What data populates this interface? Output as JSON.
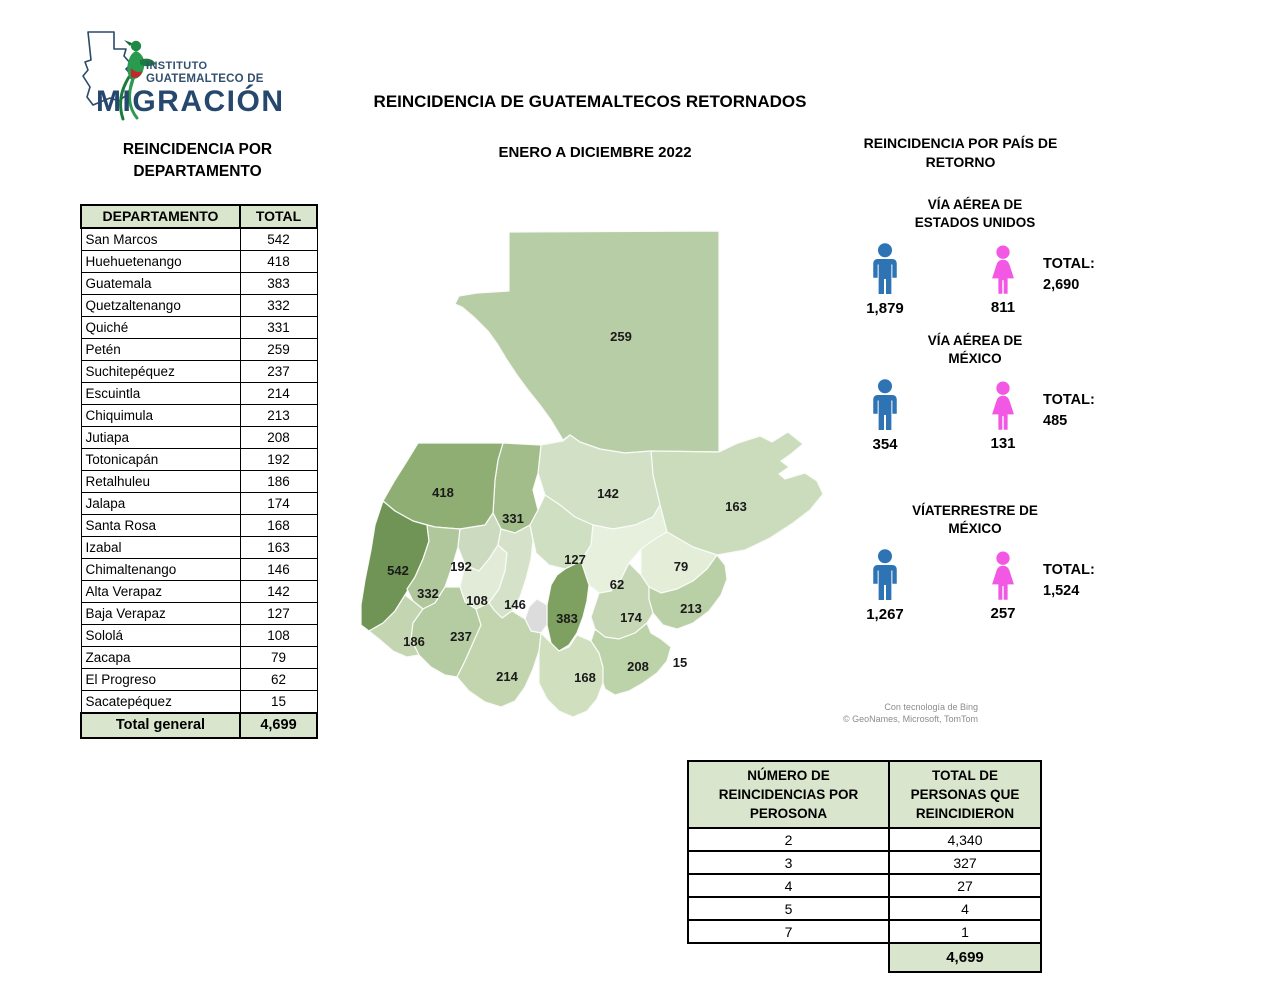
{
  "logo": {
    "line1": "INSTITUTO",
    "line2": "GUATEMALTECO DE",
    "line3": "MIGRACIÓN"
  },
  "header": {
    "title": "REINCIDENCIA DE GUATEMALTECOS RETORNADOS",
    "subtitle": "ENERO A DICIEMBRE 2022"
  },
  "left_panel": {
    "title": "REINCIDENCIA POR\nDEPARTAMENTO"
  },
  "department_table": {
    "headers": [
      "DEPARTAMENTO",
      "TOTAL"
    ],
    "rows": [
      [
        "San Marcos",
        "542"
      ],
      [
        "Huehuetenango",
        "418"
      ],
      [
        "Guatemala",
        "383"
      ],
      [
        "Quetzaltenango",
        "332"
      ],
      [
        "Quiché",
        "331"
      ],
      [
        "Petén",
        "259"
      ],
      [
        "Suchitepéquez",
        "237"
      ],
      [
        "Escuintla",
        "214"
      ],
      [
        "Chiquimula",
        "213"
      ],
      [
        "Jutiapa",
        "208"
      ],
      [
        "Totonicapán",
        "192"
      ],
      [
        "Retalhuleu",
        "186"
      ],
      [
        "Jalapa",
        "174"
      ],
      [
        "Santa Rosa",
        "168"
      ],
      [
        "Izabal",
        "163"
      ],
      [
        "Chimaltenango",
        "146"
      ],
      [
        "Alta Verapaz",
        "142"
      ],
      [
        "Baja Verapaz",
        "127"
      ],
      [
        "Sololá",
        "108"
      ],
      [
        "Zacapa",
        "79"
      ],
      [
        "El Progreso",
        "62"
      ],
      [
        "Sacatepéquez",
        "15"
      ]
    ],
    "total_label": "Total general",
    "total_value": "4,699"
  },
  "right_panel": {
    "title": "REINCIDENCIA POR PAÍS DE\nRETORNO",
    "sections": [
      {
        "title": "VÍA AÉREA DE\nESTADOS UNIDOS",
        "male_value": "1,879",
        "female_value": "811",
        "total_label": "TOTAL:",
        "total_value": "2,690"
      },
      {
        "title": "VÍA AÉREA DE\nMÉXICO",
        "male_value": "354",
        "female_value": "131",
        "total_label": "TOTAL:",
        "total_value": "485"
      },
      {
        "title": "VÍATERRESTRE DE\nMÉXICO",
        "male_value": "1,267",
        "female_value": "257",
        "total_label": "TOTAL:",
        "total_value": "1,524"
      }
    ]
  },
  "map": {
    "attribution_line1": "Con tecnología de Bing",
    "attribution_line2": "© GeoNames, Microsoft, TomTom",
    "regions": [
      {
        "name": "Petén",
        "value": "259",
        "color": "#b7cda6"
      },
      {
        "name": "Izabal",
        "value": "163",
        "color": "#cbdcbc"
      },
      {
        "name": "Alta Verapaz",
        "value": "142",
        "color": "#d2e0c6"
      },
      {
        "name": "Quiché",
        "value": "331",
        "color": "#a2bd8a"
      },
      {
        "name": "Huehuetenango",
        "value": "418",
        "color": "#8fae74"
      },
      {
        "name": "San Marcos",
        "value": "542",
        "color": "#6f9455"
      },
      {
        "name": "Quetzaltenango",
        "value": "332",
        "color": "#b0c79c"
      },
      {
        "name": "Totonicapán",
        "value": "192",
        "color": "#ccdbc0"
      },
      {
        "name": "Sololá",
        "value": "108",
        "color": "#e2ebd8"
      },
      {
        "name": "Chimaltenango",
        "value": "146",
        "color": "#d5e2c9"
      },
      {
        "name": "Baja Verapaz",
        "value": "127",
        "color": "#cfdfc2"
      },
      {
        "name": "El Progreso",
        "value": "62",
        "color": "#e7efdd"
      },
      {
        "name": "Zacapa",
        "value": "79",
        "color": "#e3edd7"
      },
      {
        "name": "Guatemala",
        "value": "383",
        "color": "#7ea161"
      },
      {
        "name": "Sacatepéquez",
        "value": "15",
        "color": "#dcdcdc"
      },
      {
        "name": "Jalapa",
        "value": "174",
        "color": "#c5d7b4"
      },
      {
        "name": "Chiquimula",
        "value": "213",
        "color": "#b9cfa5"
      },
      {
        "name": "Retalhuleu",
        "value": "186",
        "color": "#c3d6b1"
      },
      {
        "name": "Suchitepéquez",
        "value": "237",
        "color": "#b5cba2"
      },
      {
        "name": "Escuintla",
        "value": "214",
        "color": "#c2d5ae"
      },
      {
        "name": "Santa Rosa",
        "value": "168",
        "color": "#d0e0bf"
      },
      {
        "name": "Jutiapa",
        "value": "208",
        "color": "#bcd2a9"
      }
    ]
  },
  "recidivism_table": {
    "col1_header": "NÚMERO DE\nREINCIDENCIAS POR\nPEROSONA",
    "col2_header": "TOTAL DE\nPERSONAS QUE\nREINCIDIERON",
    "rows": [
      [
        "2",
        "4,340"
      ],
      [
        "3",
        "327"
      ],
      [
        "4",
        "27"
      ],
      [
        "5",
        "4"
      ],
      [
        "7",
        "1"
      ]
    ],
    "total_value": "4,699"
  },
  "colors": {
    "male_icon": "#2e74b5",
    "female_icon": "#f358e4",
    "table_header_green": "#d9e5cc",
    "logo_navy": "#27486e",
    "quetzal_green": "#2a9a4f"
  },
  "chart_data": [
    {
      "type": "table",
      "title": "REINCIDENCIA POR DEPARTAMENTO",
      "columns": [
        "DEPARTAMENTO",
        "TOTAL"
      ],
      "rows": [
        [
          "San Marcos",
          542
        ],
        [
          "Huehuetenango",
          418
        ],
        [
          "Guatemala",
          383
        ],
        [
          "Quetzaltenango",
          332
        ],
        [
          "Quiché",
          331
        ],
        [
          "Petén",
          259
        ],
        [
          "Suchitepéquez",
          237
        ],
        [
          "Escuintla",
          214
        ],
        [
          "Chiquimula",
          213
        ],
        [
          "Jutiapa",
          208
        ],
        [
          "Totonicapán",
          192
        ],
        [
          "Retalhuleu",
          186
        ],
        [
          "Jalapa",
          174
        ],
        [
          "Santa Rosa",
          168
        ],
        [
          "Izabal",
          163
        ],
        [
          "Chimaltenango",
          146
        ],
        [
          "Alta Verapaz",
          142
        ],
        [
          "Baja Verapaz",
          127
        ],
        [
          "Sololá",
          108
        ],
        [
          "Zacapa",
          79
        ],
        [
          "El Progreso",
          62
        ],
        [
          "Sacatepéquez",
          15
        ]
      ],
      "total": [
        "Total general",
        4699
      ]
    },
    {
      "type": "heatmap",
      "subtype": "choropleth",
      "title": "REINCIDENCIA DE GUATEMALTECOS RETORNADOS",
      "subtitle": "ENERO A DICIEMBRE 2022",
      "geography": "Departamentos de Guatemala",
      "categories": [
        "Petén",
        "Izabal",
        "Alta Verapaz",
        "Quiché",
        "Huehuetenango",
        "San Marcos",
        "Quetzaltenango",
        "Totonicapán",
        "Sololá",
        "Chimaltenango",
        "Baja Verapaz",
        "El Progreso",
        "Zacapa",
        "Guatemala",
        "Sacatepéquez",
        "Jalapa",
        "Chiquimula",
        "Retalhuleu",
        "Suchitepéquez",
        "Escuintla",
        "Santa Rosa",
        "Jutiapa"
      ],
      "values": [
        259,
        163,
        142,
        331,
        418,
        542,
        332,
        192,
        108,
        146,
        127,
        62,
        79,
        383,
        15,
        174,
        213,
        186,
        237,
        214,
        168,
        208
      ],
      "legend_position": "none",
      "palette": [
        "#e7efdd",
        "#6f9455"
      ]
    },
    {
      "type": "bar",
      "title": "REINCIDENCIA POR PAÍS DE RETORNO",
      "categories": [
        "VÍA AÉREA DE ESTADOS UNIDOS",
        "VÍA AÉREA DE MÉXICO",
        "VÍATERRESTRE DE MÉXICO"
      ],
      "series": [
        {
          "name": "Hombres",
          "values": [
            1879,
            354,
            1267
          ]
        },
        {
          "name": "Mujeres",
          "values": [
            811,
            131,
            257
          ]
        },
        {
          "name": "TOTAL",
          "values": [
            2690,
            485,
            1524
          ]
        }
      ]
    },
    {
      "type": "table",
      "title": "Reincidencias por persona",
      "columns": [
        "NÚMERO DE REINCIDENCIAS POR PEROSONA",
        "TOTAL DE PERSONAS QUE REINCIDIERON"
      ],
      "rows": [
        [
          2,
          4340
        ],
        [
          3,
          327
        ],
        [
          4,
          27
        ],
        [
          5,
          4
        ],
        [
          7,
          1
        ]
      ],
      "total": 4699
    }
  ]
}
